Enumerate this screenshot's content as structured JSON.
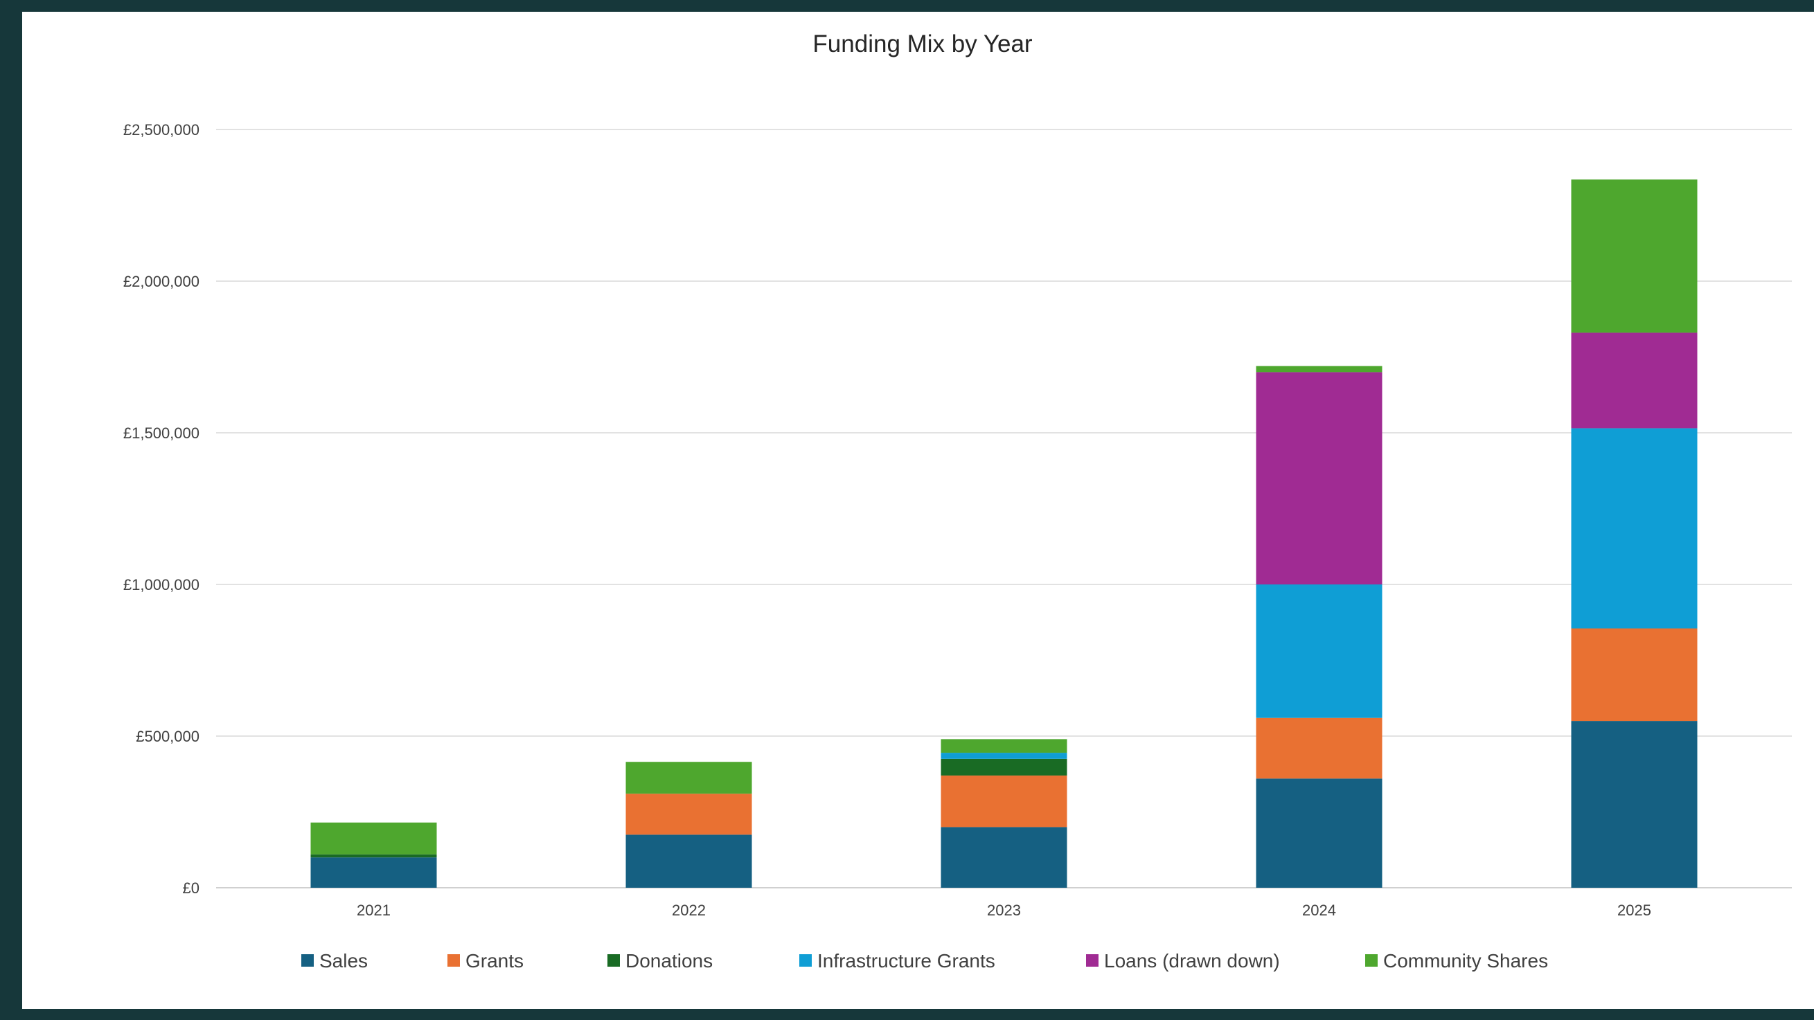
{
  "chart_data": {
    "type": "bar",
    "stacked": true,
    "title": "Funding Mix by Year",
    "xlabel": "",
    "ylabel": "",
    "categories": [
      "2021",
      "2022",
      "2023",
      "2024",
      "2025"
    ],
    "ylim": [
      0,
      2500000
    ],
    "yticks": [
      0,
      500000,
      1000000,
      1500000,
      2000000,
      2500000
    ],
    "ytick_labels": [
      "£0",
      "£500,000",
      "£1,000,000",
      "£1,500,000",
      "£2,000,000",
      "£2,500,000"
    ],
    "grid": true,
    "legend_position": "bottom",
    "series": [
      {
        "name": "Sales",
        "color": "#156082",
        "values": [
          100000,
          175000,
          200000,
          360000,
          550000
        ]
      },
      {
        "name": "Grants",
        "color": "#e97132",
        "values": [
          0,
          135000,
          170000,
          200000,
          305000
        ]
      },
      {
        "name": "Donations",
        "color": "#196b24",
        "values": [
          10000,
          0,
          55000,
          0,
          0
        ]
      },
      {
        "name": "Infrastructure Grants",
        "color": "#0f9ed5",
        "values": [
          0,
          0,
          20000,
          440000,
          660000
        ]
      },
      {
        "name": "Loans (drawn down)",
        "color": "#a02b93",
        "values": [
          0,
          0,
          0,
          700000,
          315000
        ]
      },
      {
        "name": "Community Shares",
        "color": "#4ea72e",
        "values": [
          105000,
          105000,
          45000,
          20000,
          505000
        ]
      }
    ]
  }
}
